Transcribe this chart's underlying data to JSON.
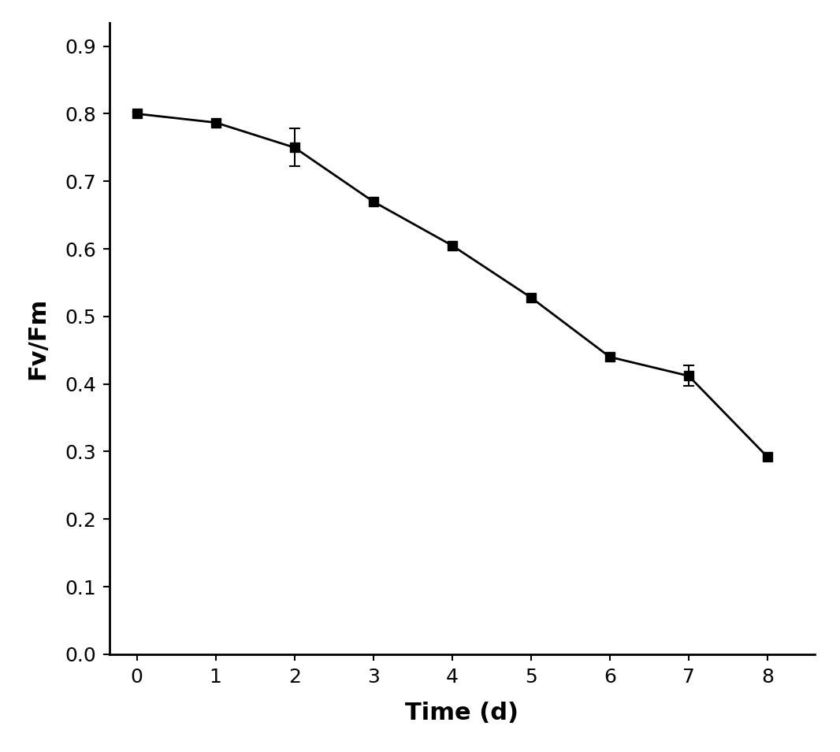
{
  "x": [
    0,
    1,
    2,
    3,
    4,
    5,
    6,
    7,
    8
  ],
  "y": [
    0.8,
    0.787,
    0.75,
    0.67,
    0.605,
    0.528,
    0.44,
    0.412,
    0.292
  ],
  "yerr": [
    0.0,
    0.0,
    0.028,
    0.0,
    0.0,
    0.0,
    0.0,
    0.015,
    0.0
  ],
  "xlabel": "Time (d)",
  "ylabel": "Fv/Fm",
  "xlim": [
    -0.35,
    8.6
  ],
  "ylim": [
    0,
    0.935
  ],
  "xticks": [
    0,
    1,
    2,
    3,
    4,
    5,
    6,
    7,
    8
  ],
  "yticks": [
    0,
    0.1,
    0.2,
    0.3,
    0.4,
    0.5,
    0.6,
    0.7,
    0.8,
    0.9
  ],
  "line_color": "#000000",
  "marker": "s",
  "marker_size": 8,
  "marker_color": "#000000",
  "line_width": 2.0,
  "background_color": "#ffffff",
  "xlabel_fontsize": 22,
  "ylabel_fontsize": 22,
  "tick_fontsize": 18,
  "xlabel_fontweight": "bold",
  "ylabel_fontweight": "bold"
}
